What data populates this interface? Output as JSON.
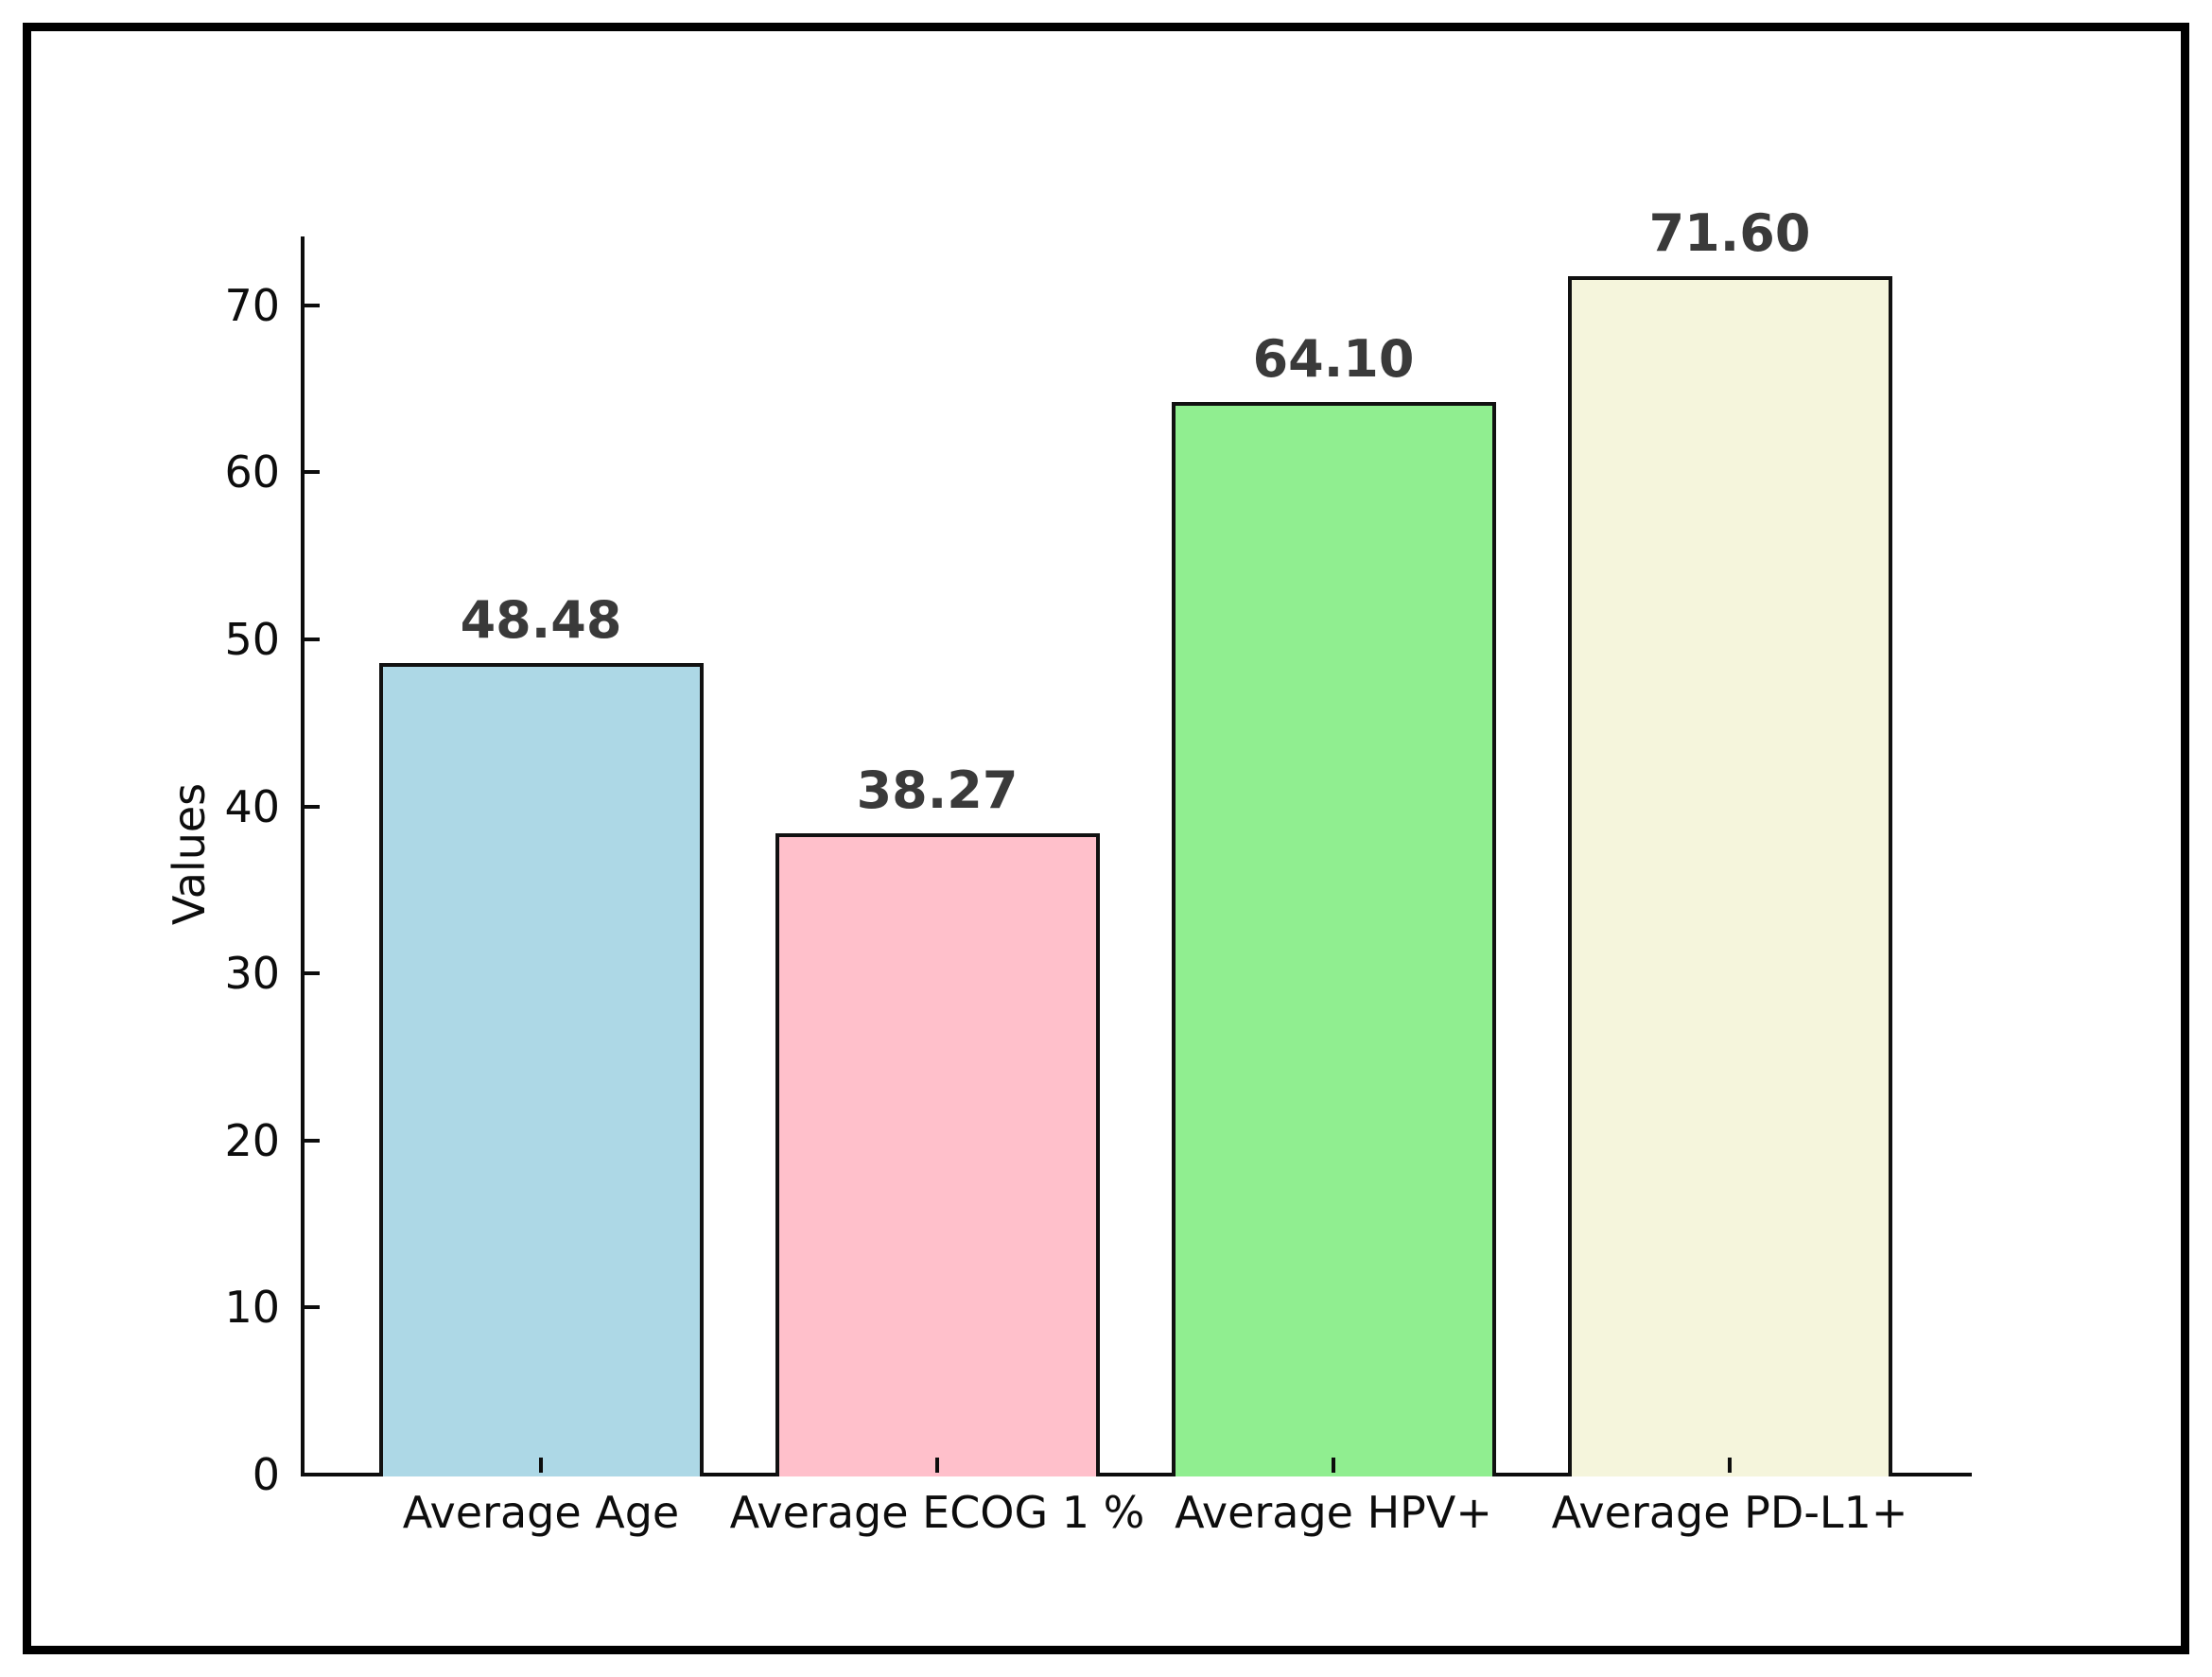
{
  "figure": {
    "background_color": "#ffffff",
    "frame_color": "#000000"
  },
  "chart_data": {
    "type": "bar",
    "title": "",
    "categories": [
      "Average Age",
      "Average ECOG 1 %",
      "Average HPV+",
      "Average PD-L1+"
    ],
    "values": [
      48.48,
      38.27,
      64.1,
      71.6
    ],
    "value_labels": [
      "48.48",
      "38.27",
      "64.10",
      "71.60"
    ],
    "bar_colors": [
      "#ADD8E6",
      "#FFC0CB",
      "#90EE90",
      "#F5F5DC"
    ],
    "bar_edge_color": "#111111",
    "xlabel": "",
    "ylabel": "Values",
    "ylim": [
      0,
      74
    ],
    "yticks": [
      0,
      10,
      20,
      30,
      40,
      50,
      60,
      70
    ],
    "grid": false,
    "legend": null,
    "tick_direction": "in",
    "axis_color": "#0d0d0d",
    "value_label_color": "#3a3a3a",
    "spines_visible": [
      "left",
      "bottom"
    ]
  }
}
